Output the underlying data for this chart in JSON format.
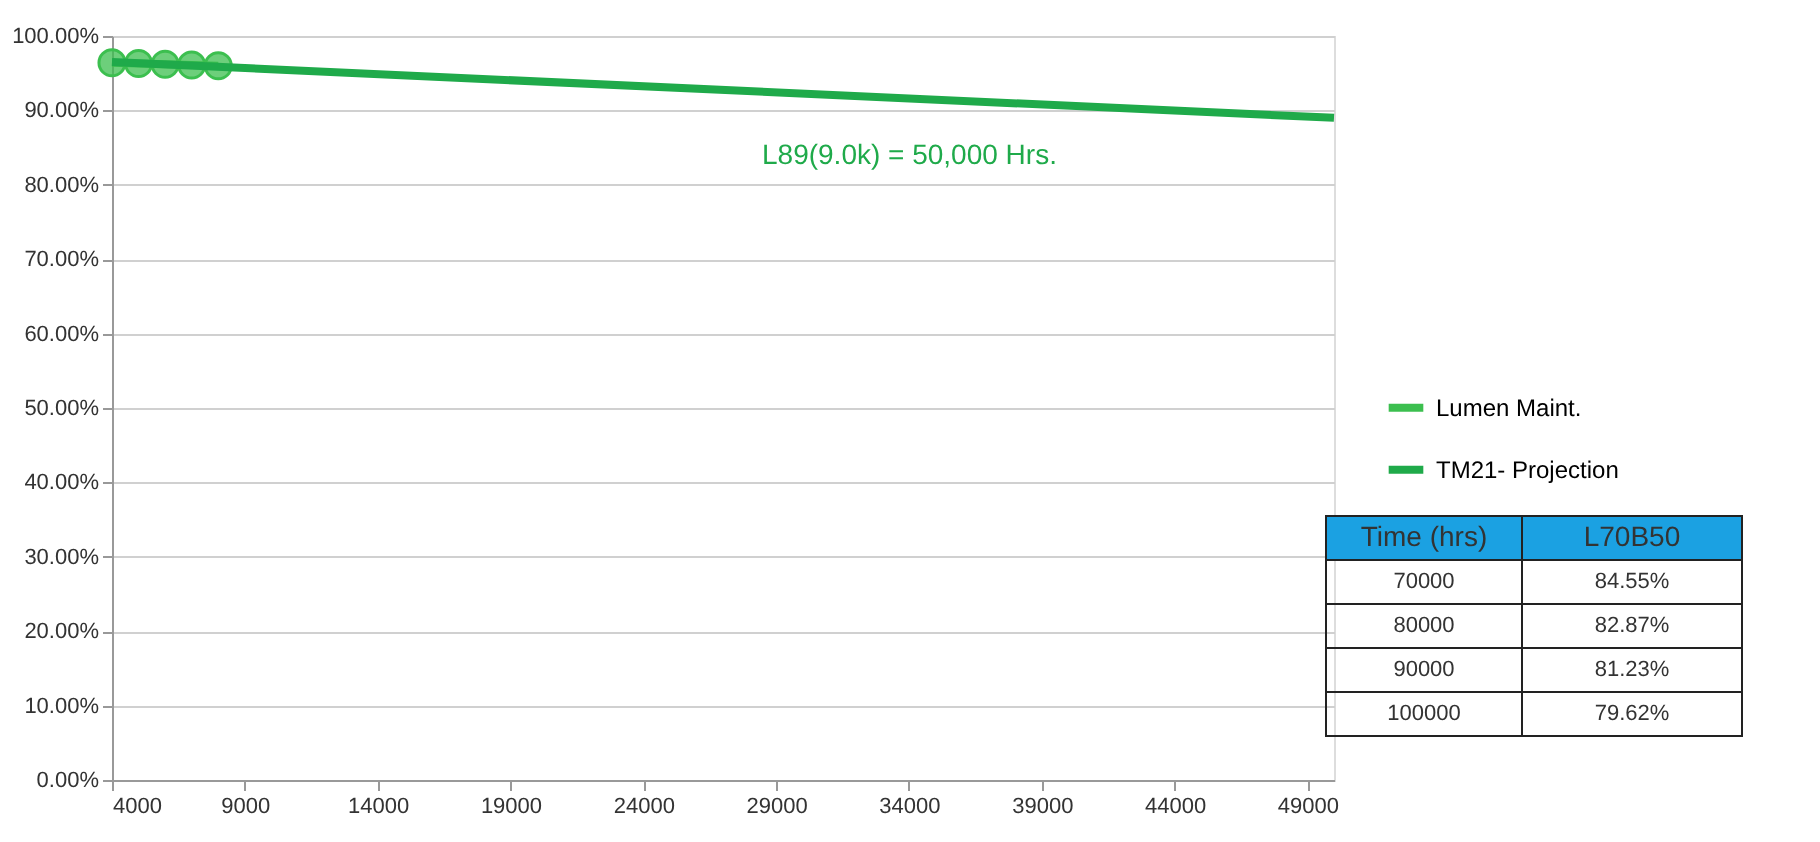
{
  "chart_data": {
    "type": "line",
    "xlim": [
      4000,
      50000
    ],
    "xticks": [
      4000,
      9000,
      14000,
      19000,
      24000,
      29000,
      34000,
      39000,
      44000,
      49000
    ],
    "ylim": [
      0,
      100
    ],
    "yticks": [
      {
        "value": 0,
        "label": "0.00%"
      },
      {
        "value": 10,
        "label": "10.00%"
      },
      {
        "value": 20,
        "label": "20.00%"
      },
      {
        "value": 30,
        "label": "30.00%"
      },
      {
        "value": 40,
        "label": "40.00%"
      },
      {
        "value": 50,
        "label": "50.00%"
      },
      {
        "value": 60,
        "label": "60.00%"
      },
      {
        "value": 70,
        "label": "70.00%"
      },
      {
        "value": 80,
        "label": "80.00%"
      },
      {
        "value": 90,
        "label": "90.00%"
      },
      {
        "value": 100,
        "label": "100.00%"
      }
    ],
    "grid": "y",
    "legend": "right",
    "line_style": "solid",
    "series": [
      {
        "name": "Lumen Maint.",
        "marker": "circle",
        "color": "#3cbf4f",
        "x": [
          4000,
          5000,
          6000,
          7000,
          8000
        ],
        "values": [
          96.4,
          96.3,
          96.2,
          96.1,
          96.0
        ]
      },
      {
        "name": "TM21- Projection",
        "marker": "none",
        "color": "#1faa4a",
        "x": [
          4000,
          50000
        ],
        "values": [
          96.5,
          89.0
        ]
      }
    ],
    "annotations": [
      "L89(9.0k) = 50,000 Hrs.",
      "Time (hrs)",
      "L70B50",
      "70000",
      "84.55%",
      "80000",
      "82.87%",
      "90000",
      "81.23%",
      "100000",
      "79.62%"
    ]
  }
}
